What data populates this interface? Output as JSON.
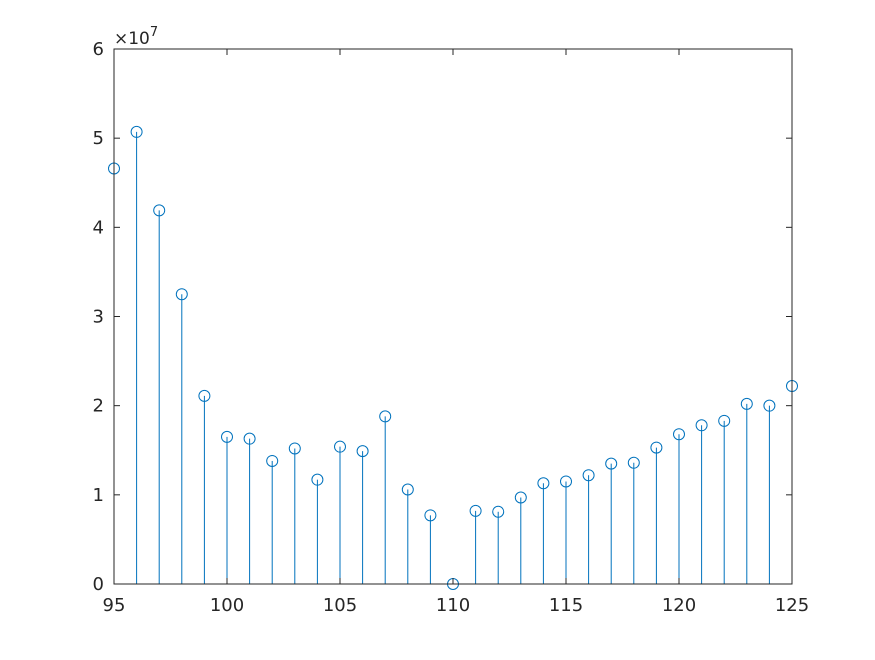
{
  "chart_data": {
    "type": "stem",
    "title": "",
    "xlabel": "",
    "ylabel": "",
    "y_exponent_label": "×10",
    "y_exponent_power": "7",
    "xlim": [
      95,
      125
    ],
    "ylim": [
      0,
      6
    ],
    "xticks": [
      "95",
      "100",
      "105",
      "110",
      "115",
      "120",
      "125"
    ],
    "yticks": [
      "0",
      "1",
      "2",
      "3",
      "4",
      "5",
      "6"
    ],
    "series": [
      {
        "color": "#0072BD",
        "x": [
          95,
          96,
          97,
          98,
          99,
          100,
          101,
          102,
          103,
          104,
          105,
          106,
          107,
          108,
          109,
          110,
          111,
          112,
          113,
          114,
          115,
          116,
          117,
          118,
          119,
          120,
          121,
          122,
          123,
          124,
          125
        ],
        "y": [
          4.66,
          5.07,
          4.19,
          3.25,
          2.11,
          1.65,
          1.63,
          1.38,
          1.52,
          1.17,
          1.54,
          1.49,
          1.88,
          1.06,
          0.77,
          0,
          0.82,
          0.81,
          0.97,
          1.13,
          1.15,
          1.22,
          1.35,
          1.36,
          1.53,
          1.68,
          1.78,
          1.83,
          2.02,
          2.0,
          2.22
        ]
      }
    ],
    "grid": false,
    "box": true
  }
}
